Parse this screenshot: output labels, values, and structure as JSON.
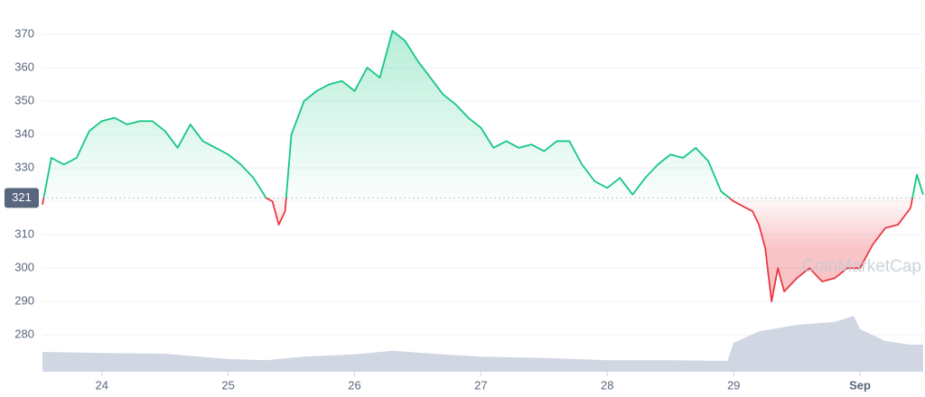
{
  "chart_data": {
    "type": "line",
    "watermark": "CoinMarketCap",
    "baseline": 321,
    "above_color": "#16c784",
    "below_color": "#ea3943",
    "xlim": [
      23.53,
      30.5
    ],
    "xticks": [
      24,
      25,
      26,
      27,
      28,
      29,
      {
        "value": 30,
        "label": "Sep"
      }
    ],
    "ylim": [
      269,
      377
    ],
    "yticks": [
      280,
      290,
      300,
      310,
      320,
      330,
      340,
      350,
      360,
      370
    ],
    "y2lim": [
      0,
      100
    ],
    "grid": true,
    "series": [
      {
        "x": [
          23.53,
          23.6,
          23.7,
          23.8,
          23.9,
          24.0,
          24.1,
          24.2,
          24.3,
          24.4,
          24.5,
          24.6,
          24.7,
          24.8,
          24.9,
          25.0,
          25.1,
          25.2,
          25.3,
          25.35,
          25.4,
          25.45,
          25.5,
          25.6,
          25.7,
          25.8,
          25.9,
          26.0,
          26.1,
          26.2,
          26.3,
          26.4,
          26.5,
          26.6,
          26.7,
          26.8,
          26.9,
          27.0,
          27.1,
          27.2,
          27.3,
          27.4,
          27.5,
          27.6,
          27.7,
          27.8,
          27.9,
          28.0,
          28.1,
          28.2,
          28.3,
          28.4,
          28.5,
          28.6,
          28.7,
          28.8,
          28.9,
          29.0,
          29.1,
          29.15,
          29.2,
          29.25,
          29.3,
          29.35,
          29.4,
          29.5,
          29.6,
          29.7,
          29.8,
          29.9,
          30.0,
          30.1,
          30.2,
          30.3,
          30.4,
          30.45,
          30.5
        ],
        "values": [
          319,
          333,
          331,
          333,
          341,
          344,
          345,
          343,
          344,
          344,
          341,
          336,
          343,
          338,
          336,
          334,
          331,
          327,
          321,
          320,
          313,
          317,
          340,
          350,
          353,
          355,
          356,
          353,
          360,
          357,
          371,
          368,
          362,
          357,
          352,
          349,
          345,
          342,
          336,
          338,
          336,
          337,
          335,
          338,
          338,
          331,
          326,
          324,
          327,
          322,
          327,
          331,
          334,
          333,
          336,
          332,
          323,
          320,
          318,
          317,
          313,
          306,
          290,
          300,
          293,
          297,
          300,
          296,
          297,
          300,
          300,
          307,
          312,
          313,
          318,
          328,
          322
        ]
      },
      {
        "axis": "y2",
        "color": "#d1d6e3",
        "x": [
          23.53,
          24.0,
          24.5,
          25.0,
          25.3,
          25.6,
          26.0,
          26.3,
          26.7,
          27.0,
          27.5,
          28.0,
          28.5,
          28.95,
          29.0,
          29.2,
          29.5,
          29.8,
          29.95,
          30.0,
          30.2,
          30.4,
          30.5
        ],
        "values": [
          5.5,
          5.2,
          5,
          3.5,
          3.2,
          4.2,
          4.8,
          5.8,
          4.8,
          4.2,
          3.8,
          3.2,
          3.2,
          3.0,
          8,
          11.2,
          13,
          13.8,
          15.5,
          11.8,
          8.5,
          7.5,
          7.5
        ]
      }
    ]
  }
}
